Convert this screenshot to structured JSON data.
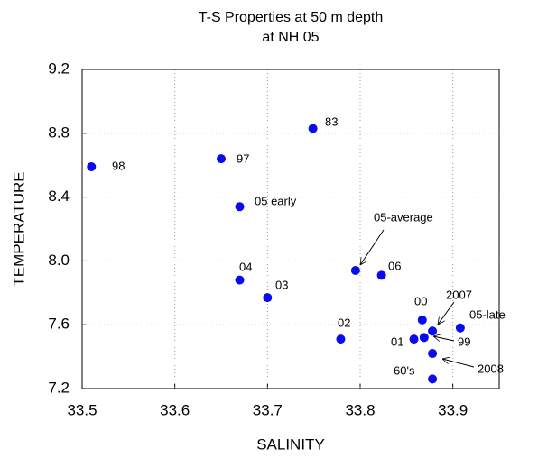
{
  "chart_data": {
    "type": "scatter",
    "title": "T-S Properties at 50 m depth",
    "subtitle": "at NH 05",
    "x_label": "SALINITY",
    "y_label": "TEMPERATURE",
    "xlim": [
      33.5,
      33.95
    ],
    "ylim": [
      7.2,
      9.2
    ],
    "xticks": [
      {
        "value": 33.5,
        "label": "33.5"
      },
      {
        "value": 33.6,
        "label": "33.6"
      },
      {
        "value": 33.7,
        "label": "33.7"
      },
      {
        "value": 33.8,
        "label": "33.8"
      },
      {
        "value": 33.9,
        "label": "33.9"
      }
    ],
    "yticks": [
      {
        "value": 7.2,
        "label": "7.2"
      },
      {
        "value": 7.6,
        "label": "7.6"
      },
      {
        "value": 8.0,
        "label": "8.0"
      },
      {
        "value": 8.4,
        "label": "8.4"
      },
      {
        "value": 8.8,
        "label": "8.8"
      },
      {
        "value": 9.2,
        "label": "9.2"
      }
    ],
    "grid": true,
    "color": "#0a0af0",
    "labels": [
      "98",
      "97",
      "83",
      "05 early",
      "04",
      "03",
      "05-average",
      "06",
      "02",
      "00",
      "2007",
      "05-late",
      "01",
      "99",
      "2008",
      "60's"
    ],
    "x": [
      33.51,
      33.65,
      33.749,
      33.67,
      33.67,
      33.7,
      33.795,
      33.823,
      33.779,
      33.867,
      33.878,
      33.908,
      33.858,
      33.869,
      33.878,
      33.878
    ],
    "values": [
      8.59,
      8.64,
      8.83,
      8.34,
      7.88,
      7.77,
      7.94,
      7.91,
      7.51,
      7.63,
      7.56,
      7.58,
      7.51,
      7.52,
      7.42,
      7.26
    ]
  }
}
